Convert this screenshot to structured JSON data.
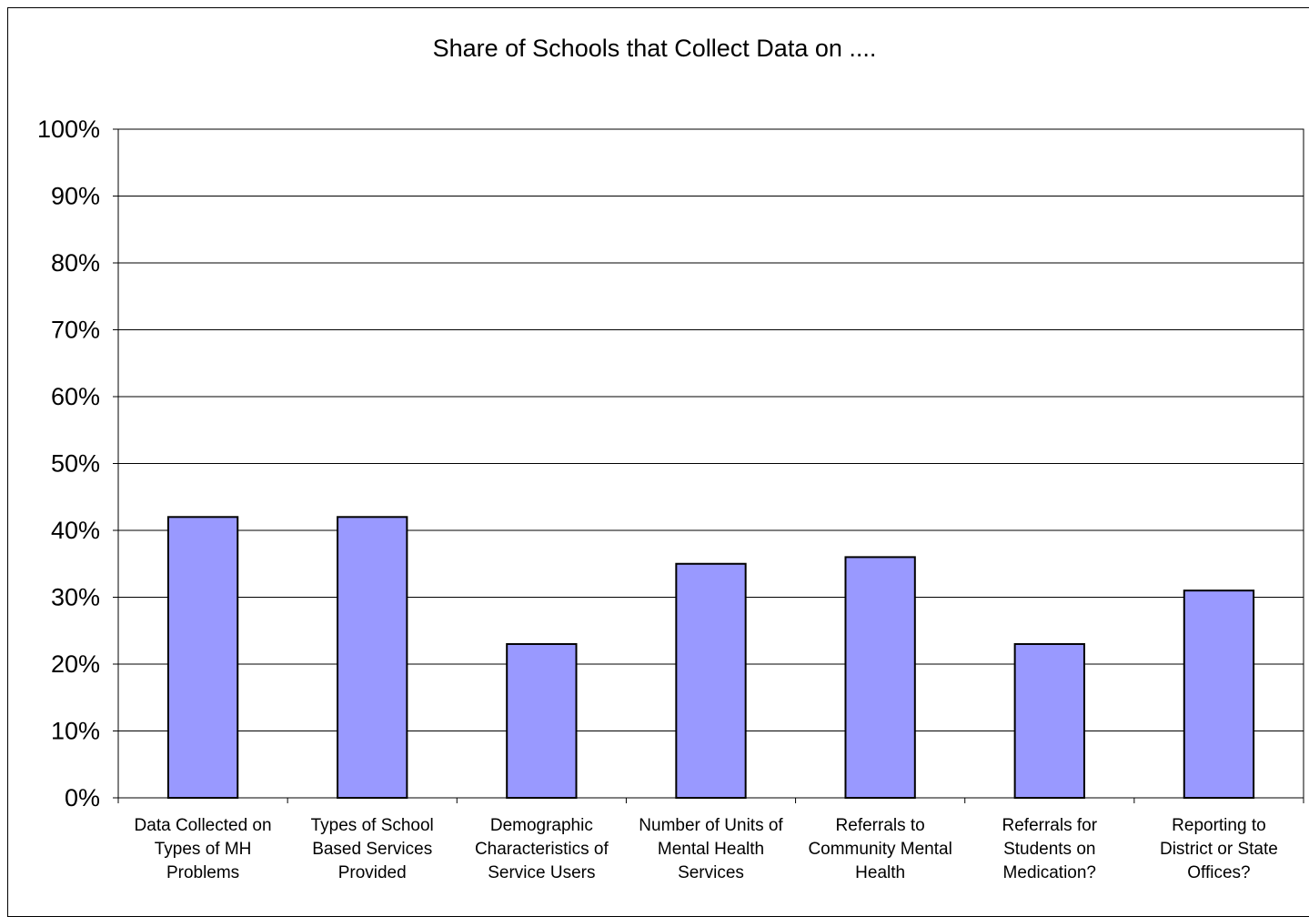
{
  "chart_data": {
    "type": "bar",
    "title": "Share of Schools that Collect Data on ....",
    "categories": [
      "Data Collected on\nTypes of MH\nProblems",
      "Types of School\nBased Services\nProvided",
      "Demographic\nCharacteristics of\nService Users",
      "Number of Units of\nMental Health\nServices",
      "Referrals to\nCommunity Mental\nHealth",
      "Referrals for\nStudents on\nMedication?",
      "Reporting to\nDistrict or State\nOffices?"
    ],
    "values": [
      0.42,
      0.42,
      0.23,
      0.35,
      0.36,
      0.23,
      0.31
    ],
    "yticks": [
      "0%",
      "10%",
      "20%",
      "30%",
      "40%",
      "50%",
      "60%",
      "70%",
      "80%",
      "90%",
      "100%"
    ],
    "ylim": [
      0,
      1
    ],
    "xlabel": "",
    "ylabel": "",
    "grid": true,
    "bar_color": "#9999ff",
    "bar_edge_color": "#000000"
  }
}
